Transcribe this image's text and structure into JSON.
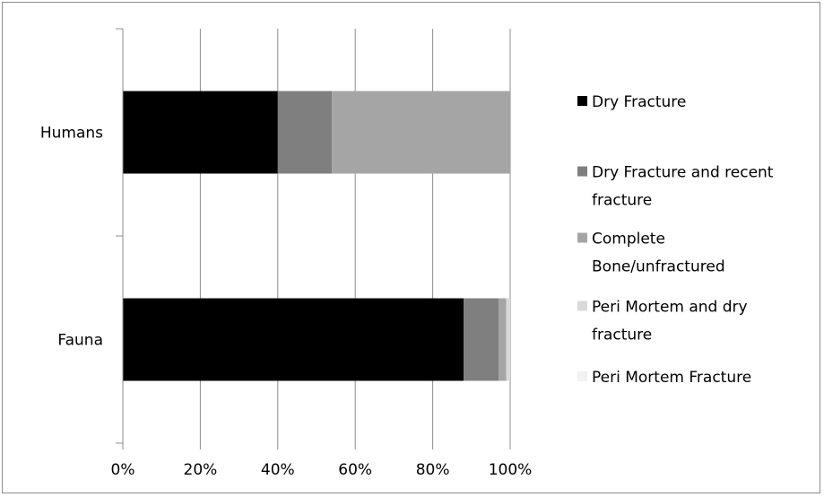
{
  "chart_data": {
    "type": "bar",
    "orientation": "horizontal",
    "stacked": "percent",
    "categories": [
      "Humans",
      "Fauna"
    ],
    "series": [
      {
        "name": "Dry Fracture",
        "color": "#000000",
        "values": [
          40,
          88
        ]
      },
      {
        "name": "Dry Fracture and recent fracture",
        "color": "#7f7f7f",
        "values": [
          14,
          9
        ]
      },
      {
        "name": "Complete Bone/unfractured",
        "color": "#a5a5a5",
        "values": [
          46,
          2
        ]
      },
      {
        "name": "Peri Mortem and dry fracture",
        "color": "#d9d9d9",
        "values": [
          0,
          1
        ]
      },
      {
        "name": "Peri Mortem Fracture",
        "color": "#f2f2f2",
        "values": [
          0,
          0
        ]
      }
    ],
    "x_ticks": [
      "0%",
      "20%",
      "40%",
      "60%",
      "80%",
      "100%"
    ],
    "xlim": [
      0,
      100
    ],
    "grid": "vertical",
    "legend_position": "right",
    "legend": {
      "entries": [
        {
          "lines": [
            "Dry Fracture"
          ]
        },
        {
          "lines": [
            "Dry Fracture and recent",
            "fracture"
          ]
        },
        {
          "lines": [
            "Complete",
            "Bone/unfractured"
          ]
        },
        {
          "lines": [
            "Peri Mortem and dry",
            "fracture"
          ]
        },
        {
          "lines": [
            "Peri Mortem Fracture"
          ]
        }
      ]
    }
  }
}
